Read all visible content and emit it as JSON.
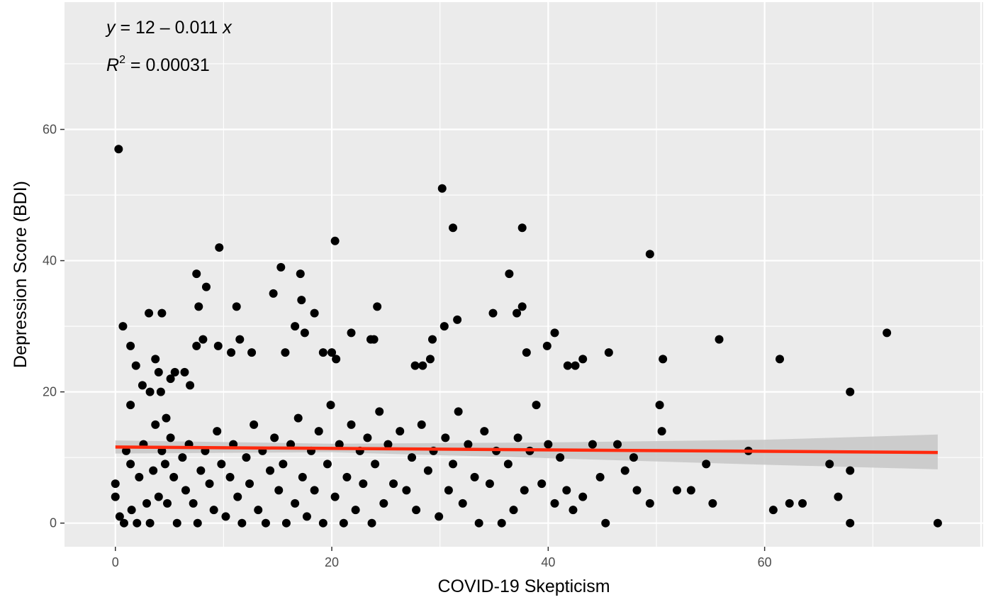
{
  "chart_data": {
    "type": "scatter",
    "xlabel": "COVID-19 Skepticism",
    "ylabel": "Depression Score (BDI)",
    "xlim": [
      -4.7,
      80.2
    ],
    "ylim": [
      -3.6,
      79.4
    ],
    "x_ticks": [
      0,
      20,
      40,
      60
    ],
    "y_ticks": [
      0,
      20,
      40,
      60
    ],
    "x_tick_labels": [
      "0",
      "20",
      "40",
      "60"
    ],
    "y_tick_labels": [
      "0",
      "20",
      "40",
      "60"
    ],
    "grid": true,
    "annotations": {
      "equation": {
        "y": "y",
        "rest": " = 12 – 0.011 ",
        "x": "x"
      },
      "r2": {
        "r": "R",
        "sup": "2",
        "rest": " = 0.00031"
      }
    },
    "regression": {
      "intercept": 11.6,
      "slope": -0.011,
      "x_range": [
        0,
        76
      ],
      "ci_low": [
        [
          0,
          10.6
        ],
        [
          20,
          10.8
        ],
        [
          40,
          9.9
        ],
        [
          60,
          8.9
        ],
        [
          76,
          8.2
        ]
      ],
      "ci_high": [
        [
          0,
          12.6
        ],
        [
          20,
          12.1
        ],
        [
          40,
          12.3
        ],
        [
          60,
          12.7
        ],
        [
          76,
          13.5
        ]
      ]
    },
    "colors": {
      "panel": "#EBEBEB",
      "grid": "#FFFFFF",
      "points": "#000000",
      "line": "#FF2A0E",
      "ribbon": "#C7C7C7"
    },
    "series": [
      {
        "points": [
          [
            0.3,
            57
          ],
          [
            0.7,
            30
          ],
          [
            1.4,
            27
          ],
          [
            1.4,
            18
          ],
          [
            1.9,
            24
          ],
          [
            2.5,
            21
          ],
          [
            3.1,
            32
          ],
          [
            3.2,
            20
          ],
          [
            4.3,
            32
          ],
          [
            4.2,
            20
          ],
          [
            3.7,
            25
          ],
          [
            4.0,
            23
          ],
          [
            3.7,
            15
          ],
          [
            4.7,
            16
          ],
          [
            5.1,
            22
          ],
          [
            5.5,
            23
          ],
          [
            6.4,
            23
          ],
          [
            6.9,
            21
          ],
          [
            7.5,
            27
          ],
          [
            7.5,
            38
          ],
          [
            7.7,
            33
          ],
          [
            8.1,
            28
          ],
          [
            8.4,
            36
          ],
          [
            9.6,
            42
          ],
          [
            9.5,
            27
          ],
          [
            10.7,
            26
          ],
          [
            11.2,
            33
          ],
          [
            11.5,
            28
          ],
          [
            12.6,
            26
          ],
          [
            14.6,
            35
          ],
          [
            15.3,
            39
          ],
          [
            15.7,
            26
          ],
          [
            17.1,
            38
          ],
          [
            17.2,
            34
          ],
          [
            17.5,
            29
          ],
          [
            16.6,
            30
          ],
          [
            18.4,
            32
          ],
          [
            19.2,
            26
          ],
          [
            20.0,
            26
          ],
          [
            20.3,
            43
          ],
          [
            20.4,
            25
          ],
          [
            21.8,
            29
          ],
          [
            23.6,
            28
          ],
          [
            23.9,
            28
          ],
          [
            24.2,
            33
          ],
          [
            30.2,
            51
          ],
          [
            31.2,
            45
          ],
          [
            31.6,
            31
          ],
          [
            30.4,
            30
          ],
          [
            29.3,
            28
          ],
          [
            27.7,
            24
          ],
          [
            28.4,
            24
          ],
          [
            29.1,
            25
          ],
          [
            34.9,
            32
          ],
          [
            36.4,
            38
          ],
          [
            37.1,
            32
          ],
          [
            37.6,
            45
          ],
          [
            37.6,
            33
          ],
          [
            38.0,
            26
          ],
          [
            39.9,
            27
          ],
          [
            40.6,
            29
          ],
          [
            41.8,
            24
          ],
          [
            42.5,
            24
          ],
          [
            43.2,
            25
          ],
          [
            45.6,
            26
          ],
          [
            49.4,
            41
          ],
          [
            50.6,
            25
          ],
          [
            50.3,
            18
          ],
          [
            55.8,
            28
          ],
          [
            61.4,
            25
          ],
          [
            67.9,
            20
          ],
          [
            71.3,
            29
          ],
          [
            0.0,
            6
          ],
          [
            0.0,
            4
          ],
          [
            0.4,
            1
          ],
          [
            0.8,
            0
          ],
          [
            1.0,
            11
          ],
          [
            1.4,
            9
          ],
          [
            1.5,
            2
          ],
          [
            2.0,
            0
          ],
          [
            2.2,
            7
          ],
          [
            2.6,
            12
          ],
          [
            2.9,
            3
          ],
          [
            3.2,
            0
          ],
          [
            3.5,
            8
          ],
          [
            4.0,
            4
          ],
          [
            4.3,
            11
          ],
          [
            4.6,
            9
          ],
          [
            4.8,
            3
          ],
          [
            5.1,
            13
          ],
          [
            5.4,
            7
          ],
          [
            5.7,
            0
          ],
          [
            6.2,
            10
          ],
          [
            6.5,
            5
          ],
          [
            6.8,
            12
          ],
          [
            7.2,
            3
          ],
          [
            7.6,
            0
          ],
          [
            7.9,
            8
          ],
          [
            8.3,
            11
          ],
          [
            8.7,
            6
          ],
          [
            9.1,
            2
          ],
          [
            9.4,
            14
          ],
          [
            9.8,
            9
          ],
          [
            10.2,
            1
          ],
          [
            10.6,
            7
          ],
          [
            10.9,
            12
          ],
          [
            11.3,
            4
          ],
          [
            11.7,
            0
          ],
          [
            12.1,
            10
          ],
          [
            12.4,
            6
          ],
          [
            12.8,
            15
          ],
          [
            13.2,
            2
          ],
          [
            13.6,
            11
          ],
          [
            13.9,
            0
          ],
          [
            14.3,
            8
          ],
          [
            14.7,
            13
          ],
          [
            15.1,
            5
          ],
          [
            15.5,
            9
          ],
          [
            15.8,
            0
          ],
          [
            16.2,
            12
          ],
          [
            16.6,
            3
          ],
          [
            16.9,
            16
          ],
          [
            17.3,
            7
          ],
          [
            17.7,
            1
          ],
          [
            18.1,
            11
          ],
          [
            18.4,
            5
          ],
          [
            18.8,
            14
          ],
          [
            19.2,
            0
          ],
          [
            19.6,
            9
          ],
          [
            19.9,
            18
          ],
          [
            20.3,
            4
          ],
          [
            20.7,
            12
          ],
          [
            21.1,
            0
          ],
          [
            21.4,
            7
          ],
          [
            21.8,
            15
          ],
          [
            22.2,
            2
          ],
          [
            22.6,
            11
          ],
          [
            22.9,
            6
          ],
          [
            23.3,
            13
          ],
          [
            23.7,
            0
          ],
          [
            24.0,
            9
          ],
          [
            24.4,
            17
          ],
          [
            24.8,
            3
          ],
          [
            25.2,
            12
          ],
          [
            25.7,
            6
          ],
          [
            26.3,
            14
          ],
          [
            26.9,
            5
          ],
          [
            27.4,
            10
          ],
          [
            27.8,
            2
          ],
          [
            28.3,
            15
          ],
          [
            28.9,
            8
          ],
          [
            29.4,
            11
          ],
          [
            29.9,
            1
          ],
          [
            30.5,
            13
          ],
          [
            30.8,
            5
          ],
          [
            31.2,
            9
          ],
          [
            31.7,
            17
          ],
          [
            32.1,
            3
          ],
          [
            32.6,
            12
          ],
          [
            33.2,
            7
          ],
          [
            33.6,
            0
          ],
          [
            34.1,
            14
          ],
          [
            34.6,
            6
          ],
          [
            35.2,
            11
          ],
          [
            35.7,
            0
          ],
          [
            36.3,
            9
          ],
          [
            36.8,
            2
          ],
          [
            37.2,
            13
          ],
          [
            37.8,
            5
          ],
          [
            38.3,
            11
          ],
          [
            38.9,
            18
          ],
          [
            39.4,
            6
          ],
          [
            40.0,
            12
          ],
          [
            40.6,
            3
          ],
          [
            41.1,
            10
          ],
          [
            41.7,
            5
          ],
          [
            42.3,
            2
          ],
          [
            43.2,
            4
          ],
          [
            44.1,
            12
          ],
          [
            44.8,
            7
          ],
          [
            45.3,
            0
          ],
          [
            46.4,
            12
          ],
          [
            47.1,
            8
          ],
          [
            47.9,
            10
          ],
          [
            48.2,
            5
          ],
          [
            49.4,
            3
          ],
          [
            50.5,
            14
          ],
          [
            51.9,
            5
          ],
          [
            53.2,
            5
          ],
          [
            54.6,
            9
          ],
          [
            55.2,
            3
          ],
          [
            58.5,
            11
          ],
          [
            60.8,
            2
          ],
          [
            62.3,
            3
          ],
          [
            63.5,
            3
          ],
          [
            66.0,
            9
          ],
          [
            66.8,
            4
          ],
          [
            67.9,
            8
          ],
          [
            67.9,
            0
          ],
          [
            76.0,
            0
          ]
        ]
      }
    ]
  }
}
